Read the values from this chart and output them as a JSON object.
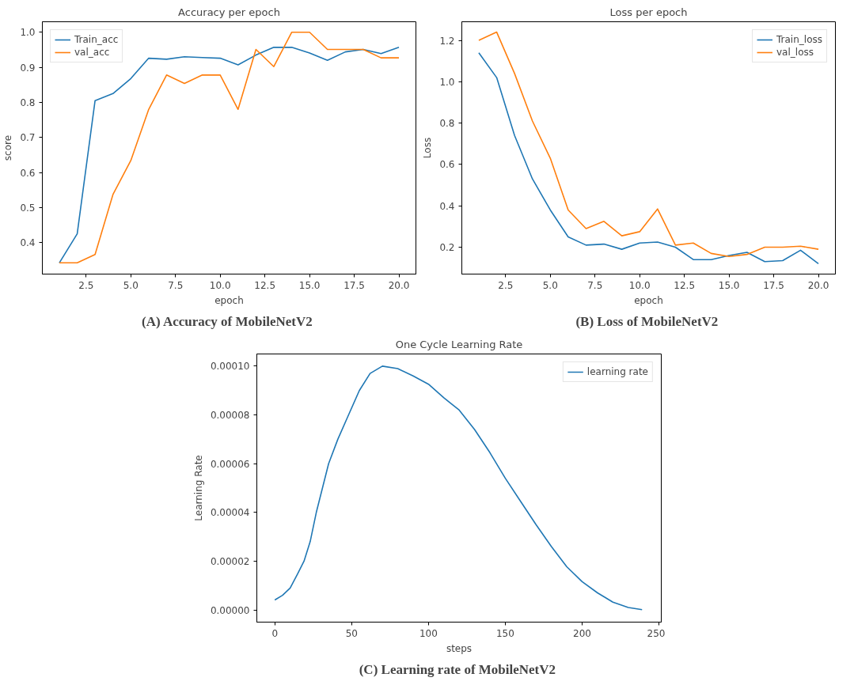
{
  "chart_data": [
    {
      "type": "line",
      "title": "Accuracy per epoch",
      "xlabel": "epoch",
      "ylabel": "score",
      "annotations": [
        "(A)  Accuracy of MobileNetV2"
      ],
      "legend": "top left",
      "grid": false,
      "x": [
        1,
        2,
        3,
        4,
        5,
        6,
        7,
        8,
        9,
        10,
        11,
        12,
        13,
        14,
        15,
        16,
        17,
        18,
        19,
        20
      ],
      "xlim": [
        0.05,
        20.95
      ],
      "ylim": [
        0.31,
        1.03
      ],
      "xticks": [
        {
          "value": 2.5,
          "label": "2.5"
        },
        {
          "value": 5,
          "label": "5.0"
        },
        {
          "value": 7.5,
          "label": "7.5"
        },
        {
          "value": 10,
          "label": "10.0"
        },
        {
          "value": 12.5,
          "label": "12.5"
        },
        {
          "value": 15,
          "label": "15.0"
        },
        {
          "value": 17.5,
          "label": "17.5"
        },
        {
          "value": 20,
          "label": "20.0"
        }
      ],
      "yticks": [
        0.4,
        0.5,
        0.6,
        0.7,
        0.8,
        0.9,
        {
          "value": 1,
          "label": "1.0"
        }
      ],
      "series": [
        {
          "name": "Train_acc",
          "color": "#1f77b4",
          "values": [
            0.342,
            0.425,
            0.805,
            0.825,
            0.868,
            0.926,
            0.923,
            0.93,
            0.928,
            0.926,
            0.907,
            0.935,
            0.957,
            0.957,
            0.941,
            0.92,
            0.944,
            0.951,
            0.939,
            0.957
          ]
        },
        {
          "name": "val_acc",
          "color": "#ff7f0e",
          "values": [
            0.342,
            0.342,
            0.366,
            0.537,
            0.634,
            0.78,
            0.878,
            0.854,
            0.878,
            0.878,
            0.78,
            0.951,
            0.902,
            1.0,
            1.0,
            0.951,
            0.951,
            0.951,
            0.927,
            0.927
          ]
        }
      ]
    },
    {
      "type": "line",
      "title": "Loss per epoch",
      "xlabel": "epoch",
      "ylabel": "Loss",
      "annotations": [
        "(B)  Loss of MobileNetV2"
      ],
      "legend": "top right",
      "grid": false,
      "x": [
        1,
        2,
        3,
        4,
        5,
        6,
        7,
        8,
        9,
        10,
        11,
        12,
        13,
        14,
        15,
        16,
        17,
        18,
        19,
        20
      ],
      "xlim": [
        0.05,
        20.95
      ],
      "ylim": [
        0.07,
        1.29
      ],
      "xticks": [
        {
          "value": 2.5,
          "label": "2.5"
        },
        {
          "value": 5,
          "label": "5.0"
        },
        {
          "value": 7.5,
          "label": "7.5"
        },
        {
          "value": 10,
          "label": "10.0"
        },
        {
          "value": 12.5,
          "label": "12.5"
        },
        {
          "value": 15,
          "label": "15.0"
        },
        {
          "value": 17.5,
          "label": "17.5"
        },
        {
          "value": 20,
          "label": "20.0"
        }
      ],
      "yticks": [
        0.2,
        0.4,
        0.6,
        0.8,
        {
          "value": 1,
          "label": "1.0"
        },
        1.2
      ],
      "series": [
        {
          "name": "Train_loss",
          "color": "#1f77b4",
          "values": [
            1.14,
            1.02,
            0.74,
            0.53,
            0.38,
            0.25,
            0.21,
            0.215,
            0.19,
            0.22,
            0.225,
            0.2,
            0.14,
            0.14,
            0.16,
            0.175,
            0.13,
            0.135,
            0.185,
            0.12
          ]
        },
        {
          "name": "val_loss",
          "color": "#ff7f0e",
          "values": [
            1.2,
            1.24,
            1.04,
            0.81,
            0.63,
            0.38,
            0.29,
            0.325,
            0.255,
            0.275,
            0.385,
            0.21,
            0.22,
            0.17,
            0.155,
            0.165,
            0.2,
            0.2,
            0.205,
            0.19
          ]
        }
      ]
    },
    {
      "type": "line",
      "title": "One Cycle Learning Rate",
      "xlabel": "steps",
      "ylabel": "Learning Rate",
      "annotations": [
        "(C)  Learning rate of MobileNetV2"
      ],
      "legend": "top right",
      "grid": false,
      "xlim": [
        -11.7,
        251.5
      ],
      "ylim": [
        -5e-06,
        0.000105
      ],
      "xticks": [
        0,
        50,
        100,
        150,
        200,
        250
      ],
      "yticks": [
        {
          "value": 0,
          "label": "0.00000"
        },
        {
          "value": 2e-05,
          "label": "0.00002"
        },
        {
          "value": 4e-05,
          "label": "0.00004"
        },
        {
          "value": 6e-05,
          "label": "0.00006"
        },
        {
          "value": 8e-05,
          "label": "0.00008"
        },
        {
          "value": 0.0001,
          "label": "0.00010"
        }
      ],
      "series": [
        {
          "name": "learning rate",
          "color": "#1f77b4",
          "x": [
            0,
            5,
            10,
            15,
            19,
            23,
            27,
            31,
            35,
            41,
            48,
            55,
            62,
            70,
            80,
            90,
            100,
            110,
            120,
            130,
            140,
            150,
            160,
            170,
            180,
            190,
            200,
            210,
            220,
            230,
            239
          ],
          "values": [
            4.1e-06,
            6e-06,
            9e-06,
            1.5e-05,
            2e-05,
            2.8e-05,
            4e-05,
            5e-05,
            6e-05,
            7e-05,
            8e-05,
            9e-05,
            9.7e-05,
            0.0001,
            9.9e-05,
            9.6e-05,
            9.26e-05,
            8.7e-05,
            8.2e-05,
            7.4e-05,
            6.45e-05,
            5.4e-05,
            4.45e-05,
            3.5e-05,
            2.6e-05,
            1.77e-05,
            1.16e-05,
            7e-06,
            3.2e-06,
            1e-06,
            1e-07
          ]
        }
      ]
    }
  ]
}
